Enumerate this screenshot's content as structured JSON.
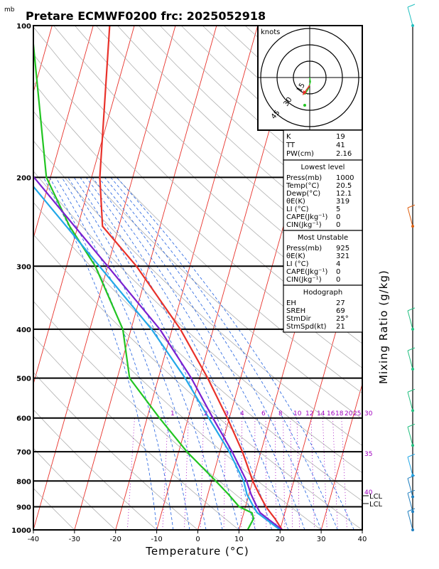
{
  "chart_data": {
    "type": "line",
    "title": "Pretare ECMWF0200 frc: 2025052918",
    "pressure_unit": "mb",
    "xlabel": "Temperature (°C)",
    "right_label": "Mixing Ratio (g/kg)",
    "xlim": [
      -40,
      40
    ],
    "ylim": [
      1000,
      100
    ],
    "y_scale": "log",
    "x_ticks": [
      "-40",
      "-30",
      "-20",
      "-10",
      "0",
      "10",
      "20",
      "30",
      "40"
    ],
    "p_ticks": [
      "100",
      "200",
      "300",
      "400",
      "500",
      "600",
      "700",
      "800",
      "900",
      "1000"
    ],
    "mixing_ratio_labels": [
      "1",
      "2",
      "3",
      "4",
      "6",
      "8",
      "10",
      "12",
      "14",
      "16",
      "18",
      "20",
      "25",
      "30",
      "35",
      "40"
    ],
    "lcl_labels": [
      "LCL",
      "LCL"
    ],
    "series": [
      {
        "name": "Temperature",
        "color": "#e8312a",
        "p": [
          1000,
          950,
          925,
          900,
          850,
          800,
          700,
          600,
          500,
          400,
          300,
          250,
          200,
          100
        ],
        "t": [
          20.5,
          18.0,
          16.5,
          15.0,
          12.5,
          10.0,
          5.5,
          -0.5,
          -8,
          -18,
          -33,
          -44,
          -48,
          -56
        ]
      },
      {
        "name": "Dewpoint",
        "color": "#22c522",
        "p": [
          1000,
          950,
          925,
          900,
          850,
          800,
          700,
          600,
          500,
          400,
          300,
          250,
          200,
          100
        ],
        "t": [
          12.1,
          12.8,
          12.0,
          8.5,
          5,
          1,
          -8,
          -17,
          -27,
          -32,
          -43,
          -52,
          -61,
          -75
        ]
      },
      {
        "name": "Parcel",
        "color": "#7a20d0",
        "p": [
          1000,
          925,
          900,
          850,
          800,
          700,
          600,
          500,
          400,
          300,
          200,
          100
        ],
        "t": [
          20.5,
          14.0,
          12.8,
          10.5,
          8.5,
          3.0,
          -4,
          -12,
          -23,
          -40,
          -64,
          -95
        ]
      },
      {
        "name": "Wetbulb",
        "color": "#22a8e8",
        "p": [
          1000,
          925,
          900,
          850,
          800,
          700,
          600,
          500,
          400,
          300,
          200,
          100
        ],
        "t": [
          20.0,
          13.3,
          12.0,
          9.5,
          7.8,
          2.3,
          -5,
          -13.5,
          -25,
          -42,
          -66,
          -97
        ]
      }
    ],
    "hodograph": {
      "unit_label": "knots",
      "ring_labels": [
        "15",
        "30",
        "45"
      ]
    },
    "indices": [
      {
        "label": "K",
        "value": "19"
      },
      {
        "label": "TT",
        "value": "41"
      },
      {
        "label": "PW(cm)",
        "value": "2.16"
      }
    ],
    "lowest_level": {
      "heading": "Lowest level",
      "rows": [
        {
          "label": "Press(mb)",
          "value": "1000"
        },
        {
          "label": "Temp(°C)",
          "value": "20.5"
        },
        {
          "label": "Dewp(°C)",
          "value": "12.1"
        },
        {
          "label": "θE(K)",
          "value": "319"
        },
        {
          "label": "LI (°C)",
          "value": "5"
        },
        {
          "label": "CAPE(Jkg⁻¹)",
          "value": "0"
        },
        {
          "label": "CIN(Jkg⁻¹)",
          "value": "0"
        }
      ]
    },
    "most_unstable": {
      "heading": "Most Unstable",
      "rows": [
        {
          "label": "Press(mb)",
          "value": "925"
        },
        {
          "label": "θE(K)",
          "value": "321"
        },
        {
          "label": "LI (°C)",
          "value": "4"
        },
        {
          "label": "CAPE(Jkg⁻¹)",
          "value": "0"
        },
        {
          "label": "CIN(Jkg⁻¹)",
          "value": "0"
        }
      ]
    },
    "hodograph_params": {
      "heading": "Hodograph",
      "rows": [
        {
          "label": "EH",
          "value": "27"
        },
        {
          "label": "SREH",
          "value": "69"
        },
        {
          "label": "StmDir",
          "value": "25°"
        },
        {
          "label": "StmSpd(kt)",
          "value": "21"
        }
      ]
    }
  }
}
